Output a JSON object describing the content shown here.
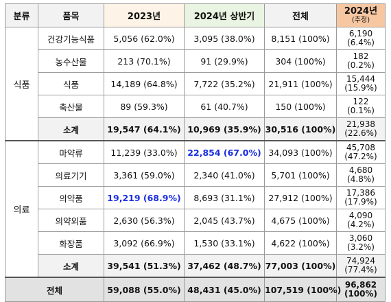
{
  "header": {
    "col_category": "분류",
    "col_item": "품목",
    "col_2023": "2023년",
    "col_2024h1": "2024년 상반기",
    "col_total": "전체",
    "col_2024e_year": "2024년",
    "col_2024e_note": "(추정)"
  },
  "groups": {
    "food": "식품",
    "medical": "의료"
  },
  "rows": [
    {
      "item": "건강기능식품",
      "y2023": "5,056  (62.0%)",
      "y2024h1": "3,095  (38.0%)",
      "total": "8,151  (100%)",
      "est1": "6,190",
      "est2": "(6.4%)"
    },
    {
      "item": "농수산물",
      "y2023": "213  (70.1%)",
      "y2024h1": "91  (29.9%)",
      "total": "304  (100%)",
      "est1": "182",
      "est2": "(0.2%)"
    },
    {
      "item": "식품",
      "y2023": "14,189  (64.8%)",
      "y2024h1": "7,722  (35.2%)",
      "total": "21,911  (100%)",
      "est1": "15,444",
      "est2": "(15.9%)"
    },
    {
      "item": "축산물",
      "y2023": "89  (59.3%)",
      "y2024h1": "61  (40.7%)",
      "total": "150  (100%)",
      "est1": "122",
      "est2": "(0.1%)"
    },
    {
      "item": "소계",
      "y2023": "19,547  (64.1%)",
      "y2024h1": "10,969  (35.9%)",
      "total": "30,516  (100%)",
      "est1": "21,938",
      "est2": "(22.6%)"
    },
    {
      "item": "마약류",
      "y2023": "11,239  (33.0%)",
      "y2024h1": "22,854  (67.0%)",
      "total": "34,093  (100%)",
      "est1": "45,708",
      "est2": "(47.2%)"
    },
    {
      "item": "의료기기",
      "y2023": "3,361  (59.0%)",
      "y2024h1": "2,340  (41.0%)",
      "total": "5,701  (100%)",
      "est1": "4,680",
      "est2": "(4.8%)"
    },
    {
      "item": "의약품",
      "y2023": "19,219  (68.9%)",
      "y2024h1": "8,693  (31.1%)",
      "total": "27,912  (100%)",
      "est1": "17,386",
      "est2": "(17.9%)"
    },
    {
      "item": "의약외품",
      "y2023": "2,630  (56.3%)",
      "y2024h1": "2,045  (43.7%)",
      "total": "4,675  (100%)",
      "est1": "4,090",
      "est2": "(4.2%)"
    },
    {
      "item": "화장품",
      "y2023": "3,092  (66.9%)",
      "y2024h1": "1,530  (33.1%)",
      "total": "4,622  (100%)",
      "est1": "3,060",
      "est2": "(3.2%)"
    },
    {
      "item": "소계",
      "y2023": "39,541  (51.3%)",
      "y2024h1": "37,462  (48.7%)",
      "total": "77,003  (100%)",
      "est1": "74,924",
      "est2": "(77.4%)"
    }
  ],
  "grand_total": {
    "label": "전체",
    "y2023": "59,088  (55.0%)",
    "y2024h1": "48,431  (45.0%)",
    "total": "107,519  (100%)",
    "est1": "96,862",
    "est2": "(100%)"
  },
  "colors": {
    "highlight": "#1a2de0",
    "header_2023": "#fdf3e6",
    "header_2024h1": "#eaf4e2",
    "header_2024e": "#f7c7a2",
    "subtotal_bg": "#f2f2f2"
  }
}
